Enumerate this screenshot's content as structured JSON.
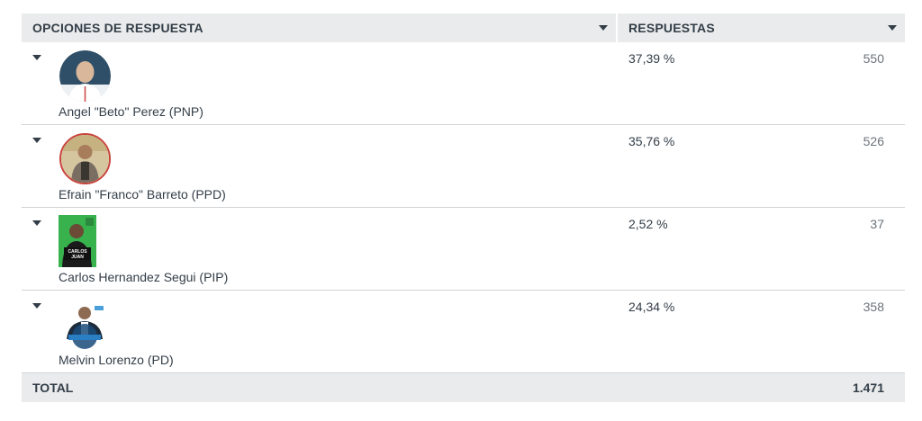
{
  "header": {
    "options_label": "OPCIONES DE RESPUESTA",
    "responses_label": "RESPUESTAS"
  },
  "rows": [
    {
      "name": "Angel \"Beto\" Perez (PNP)",
      "percent": "37,39 %",
      "count": "550"
    },
    {
      "name": "Efrain \"Franco\" Barreto (PPD)",
      "percent": "35,76 %",
      "count": "526"
    },
    {
      "name": "Carlos Hernandez Segui (PIP)",
      "percent": "2,52 %",
      "count": "37",
      "badge_text": "CARLOS JUAN"
    },
    {
      "name": "Melvin Lorenzo (PD)",
      "percent": "24,34 %",
      "count": "358"
    }
  ],
  "total": {
    "label": "TOTAL",
    "value": "1.471"
  },
  "colors": {
    "header_bg": "#eaebec",
    "text": "#333e48",
    "muted_text": "#6a737b",
    "divider": "#d0d3d6"
  },
  "icons": {
    "caret": "chevron-down-icon"
  }
}
